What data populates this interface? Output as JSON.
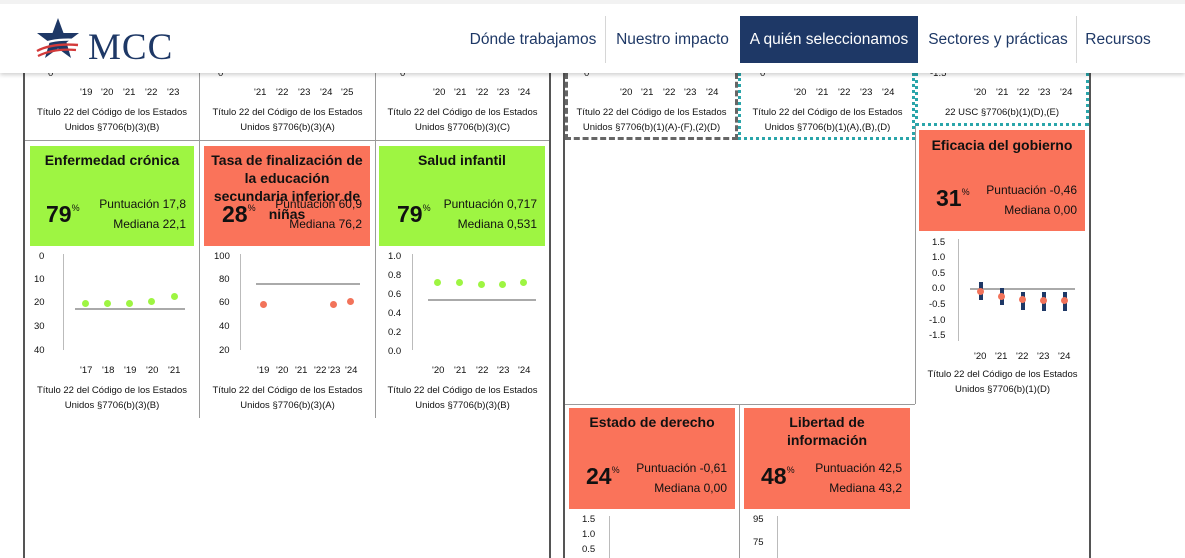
{
  "header": {
    "logo_text": "MCC",
    "nav": [
      "Dónde trabajamos",
      "Nuestro impacto",
      "A quién seleccionamos",
      "Sectores y prácticas",
      "Recursos"
    ],
    "active_nav": "A quién seleccionamos"
  },
  "colors": {
    "navy": "#1e3866",
    "pass_green": "#9ef542",
    "fail_red": "#fa735a"
  },
  "top_row": {
    "axis_zero": "0",
    "axis_neg": "-1.5",
    "c1_years": [
      "'19",
      "'20",
      "'21",
      "'22",
      "'23"
    ],
    "c2_years": [
      "'21",
      "'22",
      "'23",
      "'24",
      "'25"
    ],
    "c4_years": [
      "'20",
      "'21",
      "'22",
      "'23",
      "'24"
    ],
    "c1_cite": [
      "Título 22 del Código de los Estados",
      "Unidos §7706(b)(3)(B)"
    ],
    "c2_cite": [
      "Título 22 del Código de los Estados",
      "Unidos §7706(b)(3)(A)"
    ],
    "c3_cite": [
      "Título 22 del Código de los Estados",
      "Unidos §7706(b)(3)(C)"
    ],
    "c4_cite": [
      "Título 22 del Código de los Estados",
      "Unidos §7706(b)(1)(A)-(F),(2)(D)"
    ],
    "c5_cite": [
      "Título 22 del Código de los Estados",
      "Unidos §7706(b)(1)(A),(B),(D)"
    ],
    "c6_cite": [
      "22 USC §7706(b)(1)(D),(E)"
    ]
  },
  "cards": {
    "enfermedad": {
      "title": "Enfermedad crónica",
      "pct": "79",
      "pct_sign": "%",
      "score": "Puntuación 17,8",
      "median": "Mediana 22,1",
      "cite": [
        "Título 22 del Código de los Estados",
        "Unidos §7706(b)(3)(B)"
      ]
    },
    "tasa": {
      "title_lines": [
        "Tasa de finalización de",
        "la educación",
        "secundaria inferior de",
        "niñas"
      ],
      "pct": "28",
      "pct_sign": "%",
      "score": "Puntuación 60,9",
      "median": "Mediana 76,2",
      "cite": [
        "Título 22 del Código de los Estados",
        "Unidos §7706(b)(3)(A)"
      ]
    },
    "salud": {
      "title": "Salud infantil",
      "pct": "79",
      "pct_sign": "%",
      "score": "Puntuación 0,717",
      "median": "Mediana 0,531",
      "cite": [
        "Título 22 del Código de los Estados",
        "Unidos §7706(b)(3)(B)"
      ]
    },
    "eficacia": {
      "title": "Eficacia del gobierno",
      "pct": "31",
      "pct_sign": "%",
      "score": "Puntuación -0,46",
      "median": "Mediana 0,00",
      "cite": [
        "Título 22 del Código de los Estados",
        "Unidos §7706(b)(1)(D)"
      ]
    },
    "estado": {
      "title": "Estado de derecho",
      "pct": "24",
      "pct_sign": "%",
      "score": "Puntuación -0,61",
      "median": "Mediana 0,00"
    },
    "libertad": {
      "title_lines": [
        "Libertad de",
        "información"
      ],
      "pct": "48",
      "pct_sign": "%",
      "score": "Puntuación 42,5",
      "median": "Mediana 43,2"
    }
  },
  "chart_data": [
    {
      "type": "scatter",
      "title": "Enfermedad crónica",
      "inverted_y": true,
      "categories": [
        "'17",
        "'18",
        "'19",
        "'20",
        "'21"
      ],
      "values": [
        20.5,
        20.5,
        20.5,
        20,
        18
      ],
      "median": 22.1,
      "ylim": [
        0,
        40
      ],
      "yticks": [
        "0",
        "10",
        "20",
        "30",
        "40"
      ]
    },
    {
      "type": "scatter",
      "title": "Tasa de finalización de la educación secundaria inferior de niñas",
      "categories": [
        "'19",
        "'20",
        "'21",
        "'22",
        "'23",
        "'24"
      ],
      "points": [
        [
          0,
          59
        ],
        [
          4,
          59
        ],
        [
          5,
          61
        ]
      ],
      "median": 76.2,
      "ylim": [
        20,
        100
      ],
      "yticks": [
        "100",
        "80",
        "60",
        "40",
        "20"
      ]
    },
    {
      "type": "scatter",
      "title": "Salud infantil",
      "categories": [
        "'20",
        "'21",
        "'22",
        "'23",
        "'24"
      ],
      "values": [
        0.72,
        0.72,
        0.7,
        0.7,
        0.72
      ],
      "median": 0.531,
      "ylim": [
        0.0,
        1.0
      ],
      "yticks": [
        "1.0",
        "0.8",
        "0.6",
        "0.4",
        "0.2",
        "0.0"
      ]
    },
    {
      "type": "scatter",
      "title": "Eficacia del gobierno",
      "categories": [
        "'20",
        "'21",
        "'22",
        "'23",
        "'24"
      ],
      "values": [
        -0.15,
        -0.3,
        -0.4,
        -0.42,
        -0.42
      ],
      "err_low": [
        -0.55,
        -0.6,
        -0.7,
        -0.75,
        -0.75
      ],
      "err_high": [
        0.3,
        0.05,
        -0.1,
        -0.1,
        -0.1
      ],
      "median": 0.0,
      "ylim": [
        -1.5,
        1.5
      ],
      "yticks": [
        "1.5",
        "1.0",
        "0.5",
        "0.0",
        "-0.5",
        "-1.0",
        "-1.5"
      ]
    },
    {
      "type": "scatter",
      "title": "Estado de derecho",
      "yticks": [
        "1.5",
        "1.0",
        "0.5"
      ]
    },
    {
      "type": "scatter",
      "title": "Libertad de información",
      "yticks": [
        "95",
        "75"
      ]
    }
  ]
}
